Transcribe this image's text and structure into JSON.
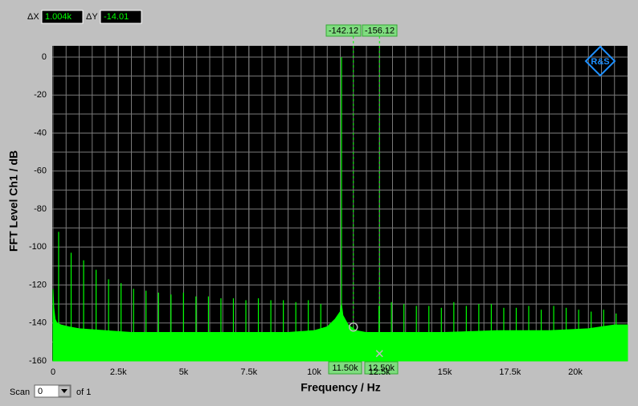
{
  "chart_data": {
    "type": "spectrum",
    "xlabel": "Frequency / Hz",
    "ylabel": "FFT Level Ch1 / dB",
    "xlim": [
      0,
      22000
    ],
    "ylim": [
      -160,
      6
    ],
    "xticks": [
      0,
      {
        "value": 2500,
        "label": "2.5k"
      },
      {
        "value": 5000,
        "label": "5k"
      },
      {
        "value": 7500,
        "label": "7.5k"
      },
      {
        "value": 10000,
        "label": "10k"
      },
      {
        "value": 12500,
        "label": "12.5k"
      },
      {
        "value": 15000,
        "label": "15k"
      },
      {
        "value": 17500,
        "label": "17.5k"
      },
      {
        "value": 20000,
        "label": "20k"
      }
    ],
    "yticks": [
      0,
      -20,
      -40,
      -60,
      -80,
      -100,
      -120,
      -140,
      -160
    ],
    "xminorticks": [
      500,
      1000,
      1500,
      2000,
      2500,
      3000,
      3500,
      4000,
      4500,
      5000,
      5500,
      6000,
      6500,
      7000,
      7500,
      8000,
      8500,
      9000,
      9500,
      10000,
      10500,
      11000,
      11500,
      12000,
      12500,
      13000,
      13500,
      14000,
      14500,
      15000,
      15500,
      16000,
      16500,
      17000,
      17500,
      18000,
      18500,
      19000,
      19500,
      20000,
      20500,
      21000,
      21500
    ],
    "yminorticks": [
      -10,
      -30,
      -50,
      -70,
      -90,
      -110,
      -130,
      -150
    ],
    "grid": true,
    "series": [
      {
        "kind": "area",
        "color": "#00ff00",
        "x": [
          0,
          30,
          80,
          150,
          300,
          600,
          1000,
          2000,
          3000,
          5000,
          7000,
          9000,
          10000,
          10500,
          10800,
          11000,
          11046,
          11100,
          11300,
          11600,
          12000,
          13000,
          15000,
          17000,
          19000,
          20500,
          21000,
          21500,
          22000
        ],
        "values": [
          -122,
          -132,
          -138,
          -140,
          -141,
          -142,
          -143,
          -144,
          -145,
          -145,
          -145,
          -145,
          -144,
          -142,
          -138,
          -134,
          -130,
          -136,
          -141,
          -144,
          -145,
          -145,
          -145,
          -144,
          -144,
          -143,
          -142,
          -141,
          -141
        ]
      },
      {
        "kind": "stem",
        "color": "#00ff00",
        "x": [
          215,
          693,
          1171,
          1649,
          2127,
          2605,
          3083,
          3561,
          4039,
          4517,
          4995,
          5473,
          5951,
          6429,
          6907,
          7385,
          7863,
          8341,
          8819,
          9297,
          9775,
          10253,
          11046,
          12480,
          12958,
          13436,
          13914,
          14392,
          14870,
          15348,
          15826,
          16304,
          16782,
          17260,
          17738,
          18216,
          18694,
          19172,
          19650,
          20128,
          20606,
          21084,
          21562
        ],
        "values": [
          -92,
          -103,
          -107,
          -112,
          -117,
          -119,
          -122,
          -123,
          -124,
          -125,
          -124,
          -126,
          -126,
          -127,
          -127,
          -128,
          -127,
          -128,
          -128,
          -129,
          -128,
          -130,
          0,
          -131,
          -129,
          -130,
          -131,
          -131,
          -132,
          -129,
          -131,
          -130,
          -130,
          -132,
          -132,
          -131,
          -133,
          -131,
          -132,
          -133,
          -134,
          -133,
          -135
        ]
      }
    ],
    "cursors": [
      {
        "x": {
          "value": 11500,
          "label": "11.50k"
        },
        "y": -142.12,
        "marker": "circle"
      },
      {
        "x": {
          "value": 12500,
          "label": "12.50k"
        },
        "y": -156.12,
        "marker": "cross"
      }
    ],
    "delta_x_label": "ΔX",
    "delta_x": "1.004k",
    "delta_y_label": "ΔY",
    "delta_y": -14.01,
    "logo": "R&S",
    "scan_label": "Scan",
    "scan_value": 0,
    "scan_of": "of 1"
  }
}
